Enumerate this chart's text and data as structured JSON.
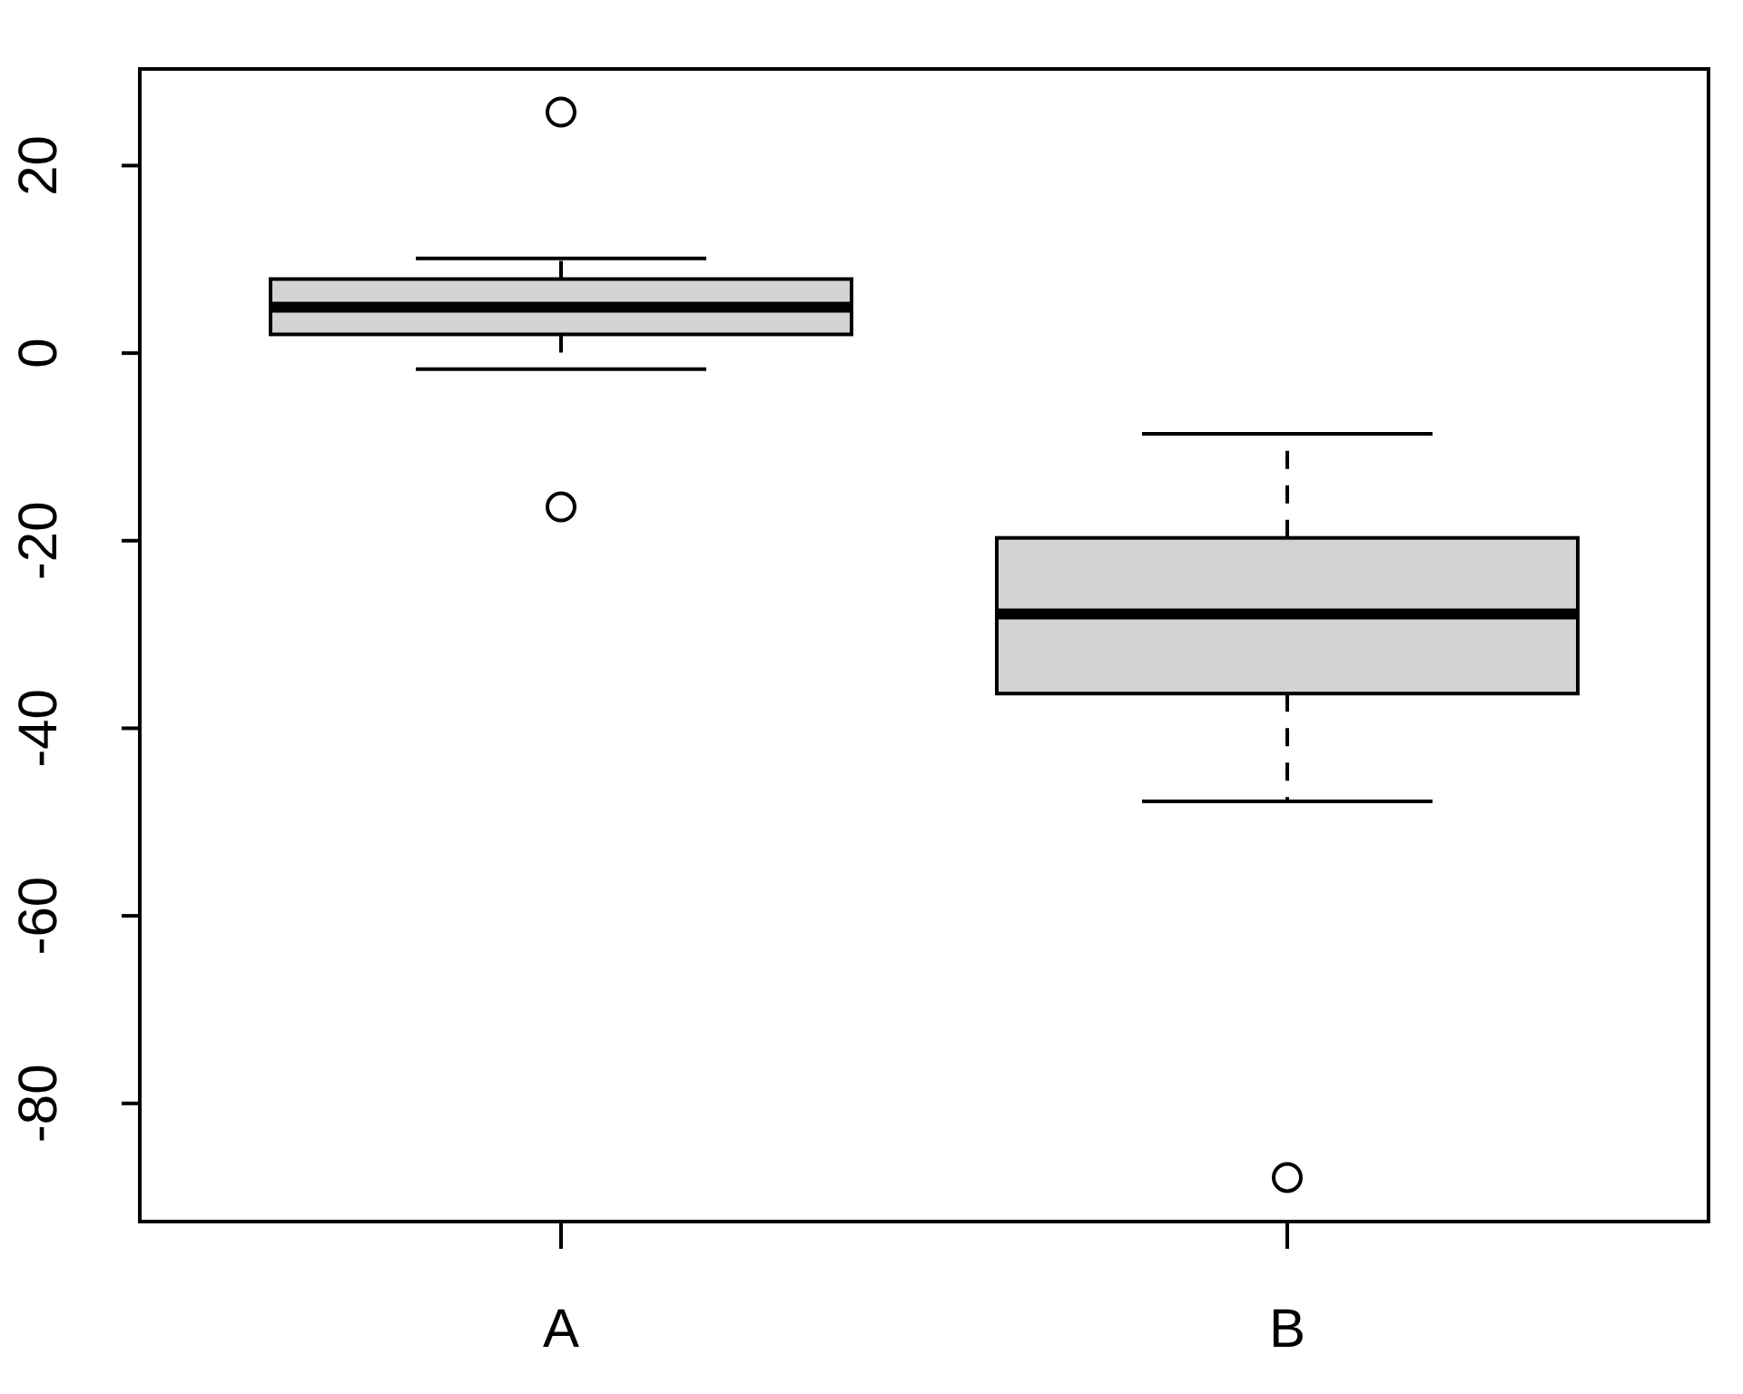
{
  "chart_data": {
    "type": "box",
    "categories": [
      "A",
      "B"
    ],
    "color": "#d3d3d3",
    "boxes": [
      {
        "low": -1.7,
        "q1": 2.0,
        "median": 4.9,
        "q3": 7.9,
        "high": 10.1,
        "outliers": [
          25.7,
          -16.4
        ]
      },
      {
        "low": -47.8,
        "q1": -36.3,
        "median": -27.8,
        "q3": -19.7,
        "high": -8.6,
        "outliers": [
          -87.9
        ]
      }
    ],
    "ylim": [
      -92.6,
      30.3
    ],
    "yticks": [
      -80,
      -60,
      -40,
      -20,
      0,
      20
    ]
  }
}
